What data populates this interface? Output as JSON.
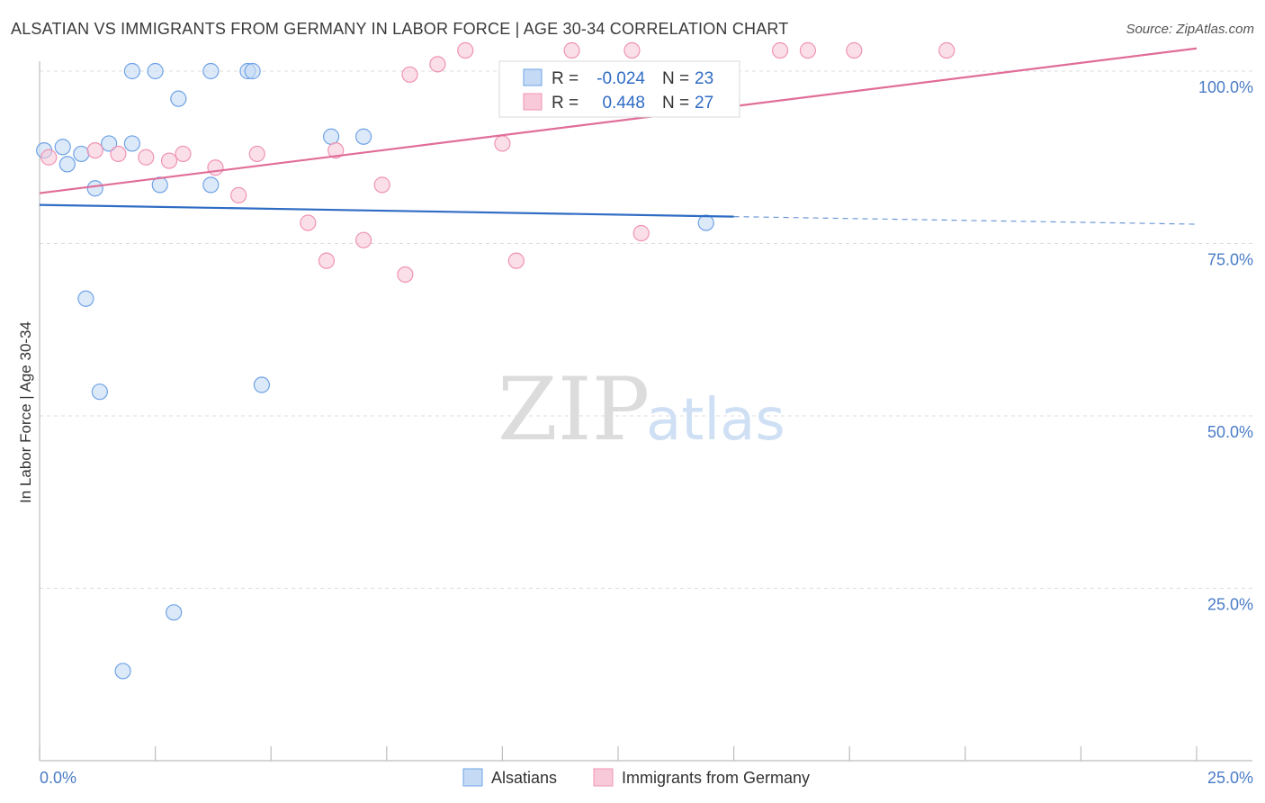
{
  "header": {
    "title": "ALSATIAN VS IMMIGRANTS FROM GERMANY IN LABOR FORCE | AGE 30-34 CORRELATION CHART",
    "source": "Source: ZipAtlas.com"
  },
  "watermark": {
    "zip": "ZIP",
    "atlas": "atlas"
  },
  "chart_data": {
    "type": "scatter",
    "title": "ALSATIAN VS IMMIGRANTS FROM GERMANY IN LABOR FORCE | AGE 30-34 CORRELATION CHART",
    "xlabel": "",
    "ylabel": "In Labor Force | Age 30-34",
    "xlim": [
      0,
      25
    ],
    "ylim": [
      0,
      100
    ],
    "x_tick_labels": [
      "0.0%",
      "25.0%"
    ],
    "y_ticks": [
      25,
      50,
      75,
      100
    ],
    "y_tick_labels": [
      "25.0%",
      "50.0%",
      "75.0%",
      "100.0%"
    ],
    "grid": true,
    "legend_placement": "top-center",
    "series": [
      {
        "name": "Alsatians",
        "color": "#6fa3e6",
        "fill": "#c5daf5",
        "line_color": "#2f6cc4",
        "R": "-0.024",
        "N": "23",
        "trend": {
          "x": [
            0,
            15
          ],
          "y": [
            80.6,
            78.9
          ],
          "dashed_to": [
            25,
            77.8
          ]
        },
        "points": [
          {
            "x": 0.1,
            "y": 88.5
          },
          {
            "x": 0.5,
            "y": 89.0
          },
          {
            "x": 0.9,
            "y": 88.0
          },
          {
            "x": 0.6,
            "y": 86.5
          },
          {
            "x": 1.5,
            "y": 89.5
          },
          {
            "x": 1.2,
            "y": 83.0
          },
          {
            "x": 2.0,
            "y": 100.0
          },
          {
            "x": 2.5,
            "y": 100.0
          },
          {
            "x": 3.7,
            "y": 100.0
          },
          {
            "x": 4.5,
            "y": 100.0
          },
          {
            "x": 4.6,
            "y": 100.0
          },
          {
            "x": 3.0,
            "y": 96.0
          },
          {
            "x": 2.0,
            "y": 89.5
          },
          {
            "x": 2.6,
            "y": 83.5
          },
          {
            "x": 3.7,
            "y": 83.5
          },
          {
            "x": 6.3,
            "y": 90.5
          },
          {
            "x": 7.0,
            "y": 90.5
          },
          {
            "x": 1.0,
            "y": 67.0
          },
          {
            "x": 1.3,
            "y": 53.5
          },
          {
            "x": 4.8,
            "y": 54.5
          },
          {
            "x": 2.9,
            "y": 21.5
          },
          {
            "x": 1.8,
            "y": 13.0
          },
          {
            "x": 14.4,
            "y": 78.0
          }
        ]
      },
      {
        "name": "Immigrants from Germany",
        "color": "#ef93b3",
        "fill": "#f8c9d9",
        "line_color": "#e06d98",
        "R": "0.448",
        "N": "27",
        "trend": {
          "x": [
            0,
            25
          ],
          "y": [
            82.3,
            103.3
          ]
        },
        "points": [
          {
            "x": 0.2,
            "y": 87.5
          },
          {
            "x": 1.2,
            "y": 88.5
          },
          {
            "x": 1.7,
            "y": 88.0
          },
          {
            "x": 2.3,
            "y": 87.5
          },
          {
            "x": 2.8,
            "y": 87.0
          },
          {
            "x": 3.1,
            "y": 88.0
          },
          {
            "x": 3.8,
            "y": 86.0
          },
          {
            "x": 4.3,
            "y": 82.0
          },
          {
            "x": 4.7,
            "y": 88.0
          },
          {
            "x": 5.8,
            "y": 78.0
          },
          {
            "x": 6.2,
            "y": 72.5
          },
          {
            "x": 6.4,
            "y": 88.5
          },
          {
            "x": 7.4,
            "y": 83.5
          },
          {
            "x": 7.0,
            "y": 75.5
          },
          {
            "x": 7.9,
            "y": 70.5
          },
          {
            "x": 8.0,
            "y": 99.5
          },
          {
            "x": 8.6,
            "y": 101.0
          },
          {
            "x": 9.2,
            "y": 103.0
          },
          {
            "x": 10.0,
            "y": 89.5
          },
          {
            "x": 10.3,
            "y": 72.5
          },
          {
            "x": 11.5,
            "y": 103.0
          },
          {
            "x": 12.8,
            "y": 103.0
          },
          {
            "x": 13.0,
            "y": 76.5
          },
          {
            "x": 16.0,
            "y": 103.0
          },
          {
            "x": 16.6,
            "y": 103.0
          },
          {
            "x": 17.6,
            "y": 103.0
          },
          {
            "x": 19.6,
            "y": 103.0
          }
        ]
      }
    ]
  },
  "legend": {
    "r_label": "R =",
    "n_label": "N ="
  }
}
